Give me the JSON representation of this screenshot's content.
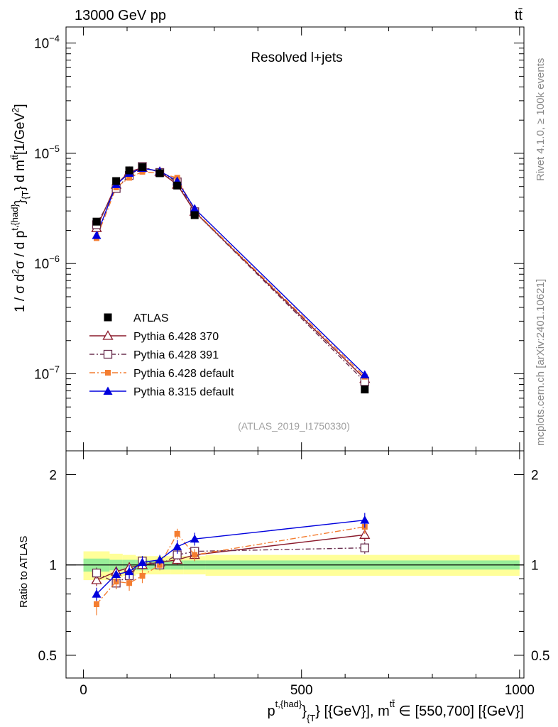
{
  "header": {
    "left": "13000 GeV pp",
    "right": "tt̄"
  },
  "side_labels": {
    "rivet": "Rivet 4.1.0, ≥ 100k events",
    "mcplots": "mcplots.cern.ch [arXiv:2401.10621]"
  },
  "chart_data": {
    "type": "scatter",
    "title": "Resolved l+jets",
    "analysis_tag": "(ATLAS_2019_I1750330)",
    "xlabel": "p^{t,{had}}_{T} [{GeV}], m^{tt̄} ∈ [550,700] [{GeV}]",
    "xlabel_parts": {
      "base": "p",
      "sup": "t,{had}",
      "sub": "}",
      "sub2": "{T",
      "rest": "} [{GeV}], m",
      "sup2": "tt̄",
      "tail": " ∈ [550,700] [{GeV}]"
    },
    "ylabel": "1 / σ d²σ / d p^{t,{had}}_{T} d m^{tt̄} [1/GeV²]",
    "ylabel_parts": {
      "a": "1 / σ d",
      "a_sup": "2",
      "b": "σ / d p",
      "b_sup": "t,{had}",
      "c": "}",
      "c_sub": "{T",
      "d": "} d m",
      "d_sup": "tt̄",
      "e": "[1/GeV",
      "e_sup": "2",
      "f": "]"
    },
    "ratio_ylabel": "Ratio to ATLAS",
    "x_range": [
      -40,
      1010
    ],
    "x_ticks": [
      0,
      500,
      1000
    ],
    "x_tick_labels": [
      "0",
      "500",
      "1000"
    ],
    "y_range_log": [
      2e-08,
      0.00014
    ],
    "y_tick_labels": [
      {
        "base": "10",
        "exp": "−4",
        "value": 0.0001
      },
      {
        "base": "10",
        "exp": "−5",
        "value": 1e-05
      },
      {
        "base": "10",
        "exp": "−6",
        "value": 1e-06
      },
      {
        "base": "10",
        "exp": "−7",
        "value": 1e-07
      }
    ],
    "ratio_range_log": [
      0.42,
      2.4
    ],
    "ratio_ticks": [
      0.5,
      1,
      2
    ],
    "ratio_tick_labels": [
      "0.5",
      "1",
      "2"
    ],
    "x": [
      30,
      75,
      105,
      135,
      175,
      215,
      255,
      645
    ],
    "bin_edges": [
      0,
      60,
      90,
      120,
      150,
      200,
      230,
      280,
      1000
    ],
    "band_inner": [
      0.05,
      0.04,
      0.04,
      0.04,
      0.035,
      0.035,
      0.035,
      0.035
    ],
    "band_outer": [
      0.11,
      0.09,
      0.08,
      0.07,
      0.07,
      0.07,
      0.07,
      0.08
    ],
    "series": [
      {
        "name": "ATLAS",
        "kind": "data",
        "color": "#000000",
        "values": [
          2.4e-06,
          5.6e-06,
          7e-06,
          7.5e-06,
          6.6e-06,
          5.1e-06,
          2.75e-06,
          7.2e-08
        ],
        "ratio": [
          1,
          1,
          1,
          1,
          1,
          1,
          1,
          1
        ]
      },
      {
        "name": "Pythia 6.428 370",
        "kind": "open-triangle",
        "color": "#8b1a2b",
        "dash": "",
        "values": [
          2.1e-06,
          5.2e-06,
          6.8e-06,
          7.4e-06,
          6.8e-06,
          5.2e-06,
          2.95e-06,
          9e-08
        ],
        "ratio": [
          0.89,
          0.95,
          0.98,
          1.0,
          1.02,
          1.04,
          1.08,
          1.26
        ],
        "ratio_err": [
          0.04,
          0.04,
          0.04,
          0.04,
          0.04,
          0.04,
          0.05,
          0.06
        ]
      },
      {
        "name": "Pythia 6.428 391",
        "kind": "open-square",
        "color": "#6b3050",
        "dash": "7,3,2,3",
        "values": [
          2.25e-06,
          4.8e-06,
          6.3e-06,
          7.6e-06,
          6.7e-06,
          5.5e-06,
          2.95e-06,
          8.5e-08
        ],
        "ratio": [
          0.94,
          0.87,
          0.92,
          1.03,
          1.0,
          1.08,
          1.11,
          1.14
        ],
        "ratio_err": [
          0.04,
          0.04,
          0.04,
          0.04,
          0.04,
          0.04,
          0.04,
          0.05
        ]
      },
      {
        "name": "Pythia 6.428 default",
        "kind": "filled-square",
        "color": "#f47d30",
        "dash": "8,3,2,3",
        "values": [
          1.7e-06,
          4.9e-06,
          6e-06,
          6.8e-06,
          6.6e-06,
          6e-06,
          3e-06,
          9.4e-08
        ],
        "ratio": [
          0.74,
          0.88,
          0.87,
          0.92,
          1.0,
          1.27,
          1.08,
          1.34
        ],
        "ratio_err": [
          0.06,
          0.05,
          0.05,
          0.05,
          0.04,
          0.05,
          0.05,
          0.07
        ]
      },
      {
        "name": "Pythia 8.315 default",
        "kind": "filled-triangle",
        "color": "#0000dd",
        "dash": "",
        "values": [
          1.8e-06,
          5.2e-06,
          6.6e-06,
          7.3e-06,
          6.9e-06,
          5.6e-06,
          3.15e-06,
          9.8e-08
        ],
        "ratio": [
          0.8,
          0.93,
          0.95,
          1.02,
          1.04,
          1.15,
          1.22,
          1.41
        ],
        "ratio_err": [
          0.04,
          0.05,
          0.05,
          0.05,
          0.04,
          0.06,
          0.06,
          0.08
        ]
      }
    ]
  }
}
